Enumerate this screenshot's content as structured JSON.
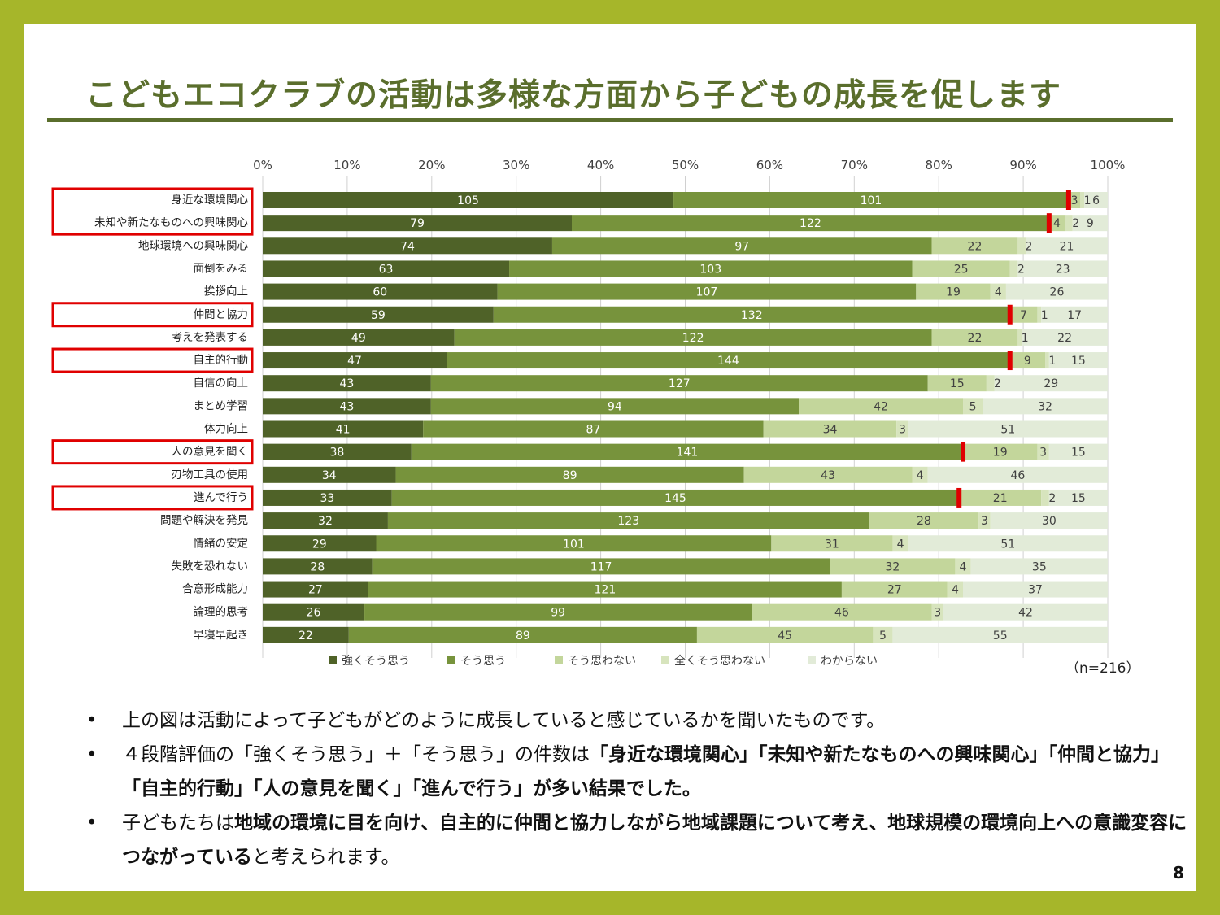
{
  "title": "こどもエコクラブの活動は多様な方面から子どもの成長を促します",
  "page_number": "8",
  "note": "（n=216）",
  "colors": {
    "strongly_agree": "#4f6228",
    "agree": "#77933c",
    "disagree": "#c3d69b",
    "strongly_disagree": "#d7e4bd",
    "dont_know": "#e2ebd8",
    "highlight": "#e00000",
    "frame": "#a6b62a",
    "title": "#5a6e2c"
  },
  "chart_data": {
    "type": "bar",
    "orientation": "horizontal",
    "stacked": "percent",
    "n": 216,
    "x_ticks": [
      "0%",
      "10%",
      "20%",
      "30%",
      "40%",
      "50%",
      "60%",
      "70%",
      "80%",
      "90%",
      "100%"
    ],
    "xlim": [
      0,
      100
    ],
    "legend_position": "bottom",
    "categories": [
      "身近な環境関心",
      "未知や新たなものへの興味関心",
      "地球環境への興味関心",
      "面倒をみる",
      "挨拶向上",
      "仲間と協力",
      "考えを発表する",
      "自主的行動",
      "自信の向上",
      "まとめ学習",
      "体力向上",
      "人の意見を聞く",
      "刃物工具の使用",
      "進んで行う",
      "問題や解決を発見",
      "情緒の安定",
      "失敗を恐れない",
      "合意形成能力",
      "論理的思考",
      "早寝早起き"
    ],
    "highlighted": [
      "身近な環境関心",
      "未知や新たなものへの興味関心",
      "仲間と協力",
      "自主的行動",
      "人の意見を聞く",
      "進んで行う"
    ],
    "series": [
      {
        "name": "強くそう思う",
        "values": [
          105,
          79,
          74,
          63,
          60,
          59,
          49,
          47,
          43,
          43,
          41,
          38,
          34,
          33,
          32,
          29,
          28,
          27,
          26,
          22
        ]
      },
      {
        "name": "そう思う",
        "values": [
          101,
          122,
          97,
          103,
          107,
          132,
          122,
          144,
          127,
          94,
          87,
          141,
          89,
          145,
          123,
          101,
          117,
          121,
          99,
          89
        ]
      },
      {
        "name": "そう思わない",
        "values": [
          3,
          4,
          22,
          25,
          19,
          7,
          22,
          9,
          15,
          42,
          34,
          19,
          43,
          21,
          28,
          31,
          32,
          27,
          46,
          45
        ]
      },
      {
        "name": "全くそう思わない",
        "values": [
          1,
          2,
          2,
          2,
          4,
          1,
          1,
          1,
          2,
          5,
          3,
          3,
          4,
          2,
          3,
          4,
          4,
          4,
          3,
          5
        ]
      },
      {
        "name": "わからない",
        "values": [
          6,
          9,
          21,
          23,
          26,
          17,
          22,
          15,
          29,
          32,
          51,
          15,
          46,
          15,
          30,
          51,
          35,
          37,
          42,
          55
        ]
      }
    ]
  },
  "bullets": [
    [
      {
        "t": "上の図は活動によって子どもがどのように成長していると感じているかを聞いたものです。",
        "b": false
      }
    ],
    [
      {
        "t": "４段階評価の「強くそう思う」＋「そう思う」の件数は",
        "b": false
      },
      {
        "t": "「身近な環境関心」「未知や新たなものへの興味関心」「仲間と協力」「自主的行動」「人の意見を聞く」「進んで行う」が多い結果でした。",
        "b": true
      }
    ],
    [
      {
        "t": "子どもたちは",
        "b": false
      },
      {
        "t": "地域の環境に目を向け、自主的に仲間と協力しながら地域課題について考え、地球規模の環境向上への意識変容につながっている",
        "b": true
      },
      {
        "t": "と考えられます。",
        "b": false
      }
    ]
  ]
}
